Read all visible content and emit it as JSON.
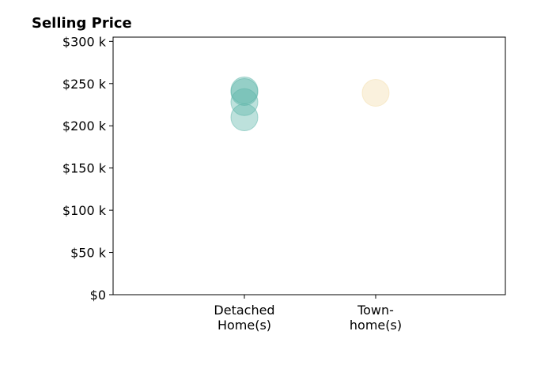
{
  "chart_data": {
    "type": "scatter",
    "title": "Selling Price",
    "xlabel": "",
    "ylabel": "",
    "categories": [
      "Detached Home(s)",
      "Town- home(s)"
    ],
    "category_labels": [
      [
        "Detached",
        "Home(s)"
      ],
      [
        "Town-",
        "home(s)"
      ]
    ],
    "ylim": [
      0,
      305000
    ],
    "yticks": [
      0,
      50000,
      100000,
      150000,
      200000,
      250000,
      300000
    ],
    "ytick_labels": [
      "$0",
      "$50 k",
      "$100 k",
      "$150 k",
      "$200 k",
      "$250 k",
      "$300 k"
    ],
    "grid": false,
    "legend": "none",
    "series": [
      {
        "category": "Detached Home(s)",
        "values": [
          210000,
          228000,
          240000,
          242000
        ],
        "color": "#5ab4a8"
      },
      {
        "category": "Town- home(s)",
        "values": [
          239000
        ],
        "color": "#f3ddaa"
      }
    ]
  }
}
